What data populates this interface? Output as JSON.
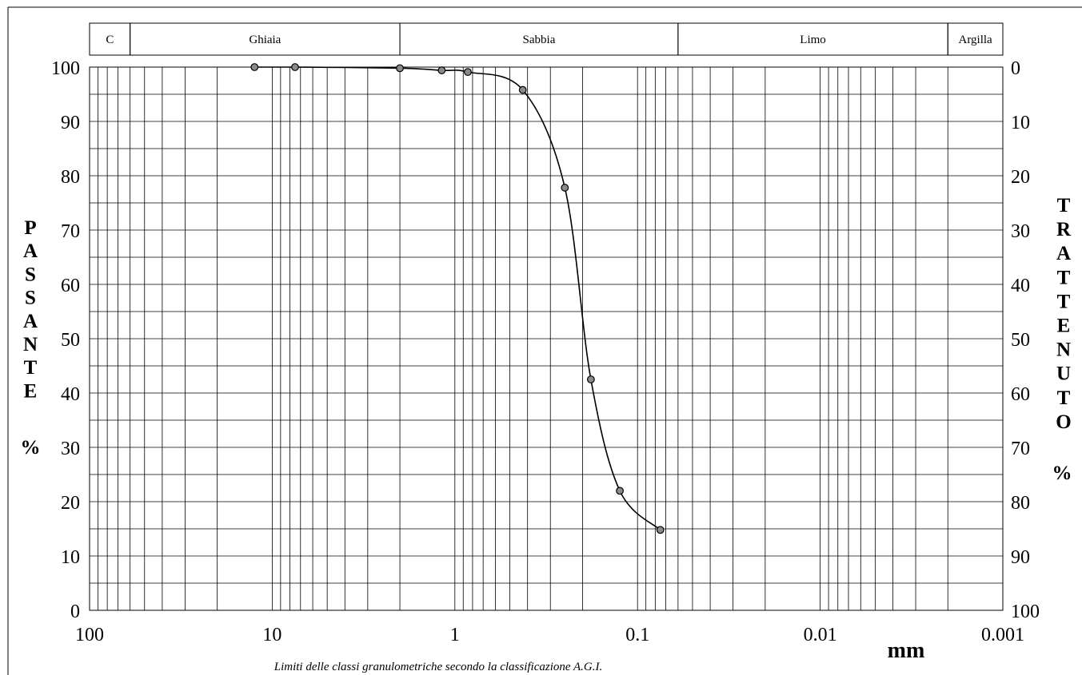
{
  "chart_data": {
    "type": "scatter",
    "x_scale": "log",
    "x_reversed": true,
    "xlim": [
      100,
      0.001
    ],
    "ylim": [
      0,
      100
    ],
    "grid": true,
    "classification_bands": [
      {
        "label": "C",
        "from": 100,
        "to": 60
      },
      {
        "label": "Ghiaia",
        "from": 60,
        "to": 2
      },
      {
        "label": "Sabbia",
        "from": 2,
        "to": 0.06
      },
      {
        "label": "Limo",
        "from": 0.06,
        "to": 0.002
      },
      {
        "label": "Argilla",
        "from": 0.002,
        "to": 0.001
      }
    ],
    "x_tick_labels": [
      "100",
      "10",
      "1",
      "0.1",
      "0.01",
      "0.001"
    ],
    "x_tick_values": [
      100,
      10,
      1,
      0.1,
      0.01,
      0.001
    ],
    "y_left_tick_labels": [
      "0",
      "10",
      "20",
      "30",
      "40",
      "50",
      "60",
      "70",
      "80",
      "90",
      "100"
    ],
    "y_right_tick_labels": [
      "100",
      "90",
      "80",
      "70",
      "60",
      "50",
      "40",
      "30",
      "20",
      "10",
      "0"
    ],
    "y_left_title": "PASSANTE",
    "y_left_unit": "%",
    "y_right_title": "TRATTENUTO",
    "y_right_unit": "%",
    "x_unit": "mm",
    "footnote": "Limiti delle classi granulometriche secondo la classificazione A.G.I.",
    "series": [
      {
        "x": [
          12.5,
          7.5,
          2.0,
          1.18,
          0.85,
          0.425,
          0.25,
          0.18,
          0.125,
          0.075
        ],
        "y": [
          100.0,
          100.0,
          99.8,
          99.4,
          99.1,
          95.8,
          77.8,
          42.5,
          22.0,
          14.8
        ]
      }
    ]
  }
}
